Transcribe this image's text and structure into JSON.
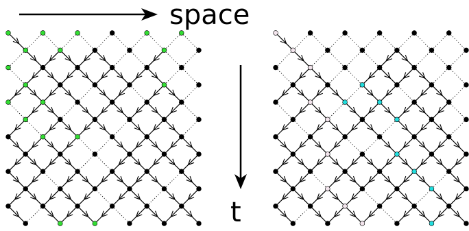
{
  "labels": {
    "space": "space",
    "time": "t"
  },
  "colors": {
    "background": "#ffffff",
    "ink": "#000000",
    "active_node": "#000000",
    "left_highlight": "#33dd33",
    "right_highlight": "#22dddd",
    "right_root": "#f2e4ec"
  },
  "panels": [
    {
      "name": "left-lattice",
      "n": 11,
      "seeds": [
        [
          0,
          0
        ],
        [
          1,
          1
        ],
        [
          1,
          2
        ],
        [
          1,
          3
        ],
        [
          1,
          5
        ],
        [
          3,
          8
        ],
        [
          1,
          9
        ],
        [
          1,
          10
        ],
        [
          4,
          9
        ],
        [
          5,
          0
        ],
        [
          5,
          2
        ],
        [
          5,
          4
        ],
        [
          7,
          1
        ],
        [
          7,
          4
        ],
        [
          8,
          7
        ],
        [
          9,
          3
        ],
        [
          10,
          0
        ],
        [
          10,
          2
        ],
        [
          10,
          5
        ]
      ],
      "highlight": {
        "color": "left_highlight",
        "nodes": [
          [
            0,
            0
          ],
          [
            0,
            1
          ],
          [
            0,
            2
          ],
          [
            0,
            3
          ],
          [
            0,
            4
          ],
          [
            0,
            5
          ],
          [
            0,
            8
          ],
          [
            0,
            9
          ],
          [
            0,
            10
          ],
          [
            1,
            1
          ],
          [
            1,
            2
          ],
          [
            1,
            3
          ],
          [
            1,
            9
          ],
          [
            1,
            10
          ],
          [
            2,
            0
          ],
          [
            3,
            0
          ],
          [
            3,
            1
          ],
          [
            3,
            8
          ],
          [
            3,
            9
          ],
          [
            4,
            0
          ],
          [
            4,
            1
          ],
          [
            4,
            2
          ],
          [
            4,
            9
          ],
          [
            5,
            1
          ],
          [
            6,
            1
          ],
          [
            6,
            2
          ],
          [
            6,
            3
          ],
          [
            6,
            4
          ],
          [
            6,
            9
          ],
          [
            11,
            2
          ],
          [
            11,
            3
          ],
          [
            11,
            4
          ],
          [
            11,
            5
          ]
        ]
      }
    },
    {
      "name": "right-lattice",
      "n": 11,
      "seeds": [
        [
          0,
          0
        ],
        [
          1,
          4
        ],
        [
          2,
          2
        ],
        [
          1,
          7
        ],
        [
          3,
          3
        ],
        [
          4,
          2
        ],
        [
          4,
          5
        ],
        [
          5,
          3
        ],
        [
          5,
          6
        ],
        [
          6,
          7
        ],
        [
          6,
          1
        ],
        [
          7,
          1
        ],
        [
          7,
          5
        ],
        [
          8,
          1
        ],
        [
          8,
          4
        ],
        [
          9,
          6
        ],
        [
          10,
          2
        ],
        [
          10,
          7
        ]
      ],
      "highlight": {
        "color": "right_highlight",
        "nodes": [
          [
            3,
            5
          ],
          [
            4,
            6
          ],
          [
            5,
            6
          ],
          [
            5,
            7
          ],
          [
            5,
            8
          ],
          [
            6,
            7
          ],
          [
            7,
            7
          ],
          [
            7,
            8
          ],
          [
            8,
            8
          ],
          [
            8,
            9
          ],
          [
            9,
            9
          ],
          [
            10,
            9
          ],
          [
            11,
            0
          ],
          [
            11,
            8
          ],
          [
            11,
            9
          ],
          [
            11,
            10
          ],
          [
            2,
            3
          ],
          [
            3,
            4
          ],
          [
            4,
            4
          ]
        ]
      },
      "root": {
        "color": "right_root",
        "nodes": [
          [
            0,
            0
          ],
          [
            1,
            1
          ],
          [
            1,
            2
          ],
          [
            2,
            1
          ],
          [
            2,
            2
          ],
          [
            3,
            2
          ],
          [
            4,
            2
          ],
          [
            5,
            2
          ],
          [
            4,
            3
          ],
          [
            5,
            3
          ],
          [
            6,
            3
          ],
          [
            7,
            3
          ],
          [
            8,
            3
          ],
          [
            9,
            3
          ],
          [
            10,
            4
          ],
          [
            11,
            4
          ],
          [
            11,
            5
          ]
        ]
      }
    }
  ]
}
